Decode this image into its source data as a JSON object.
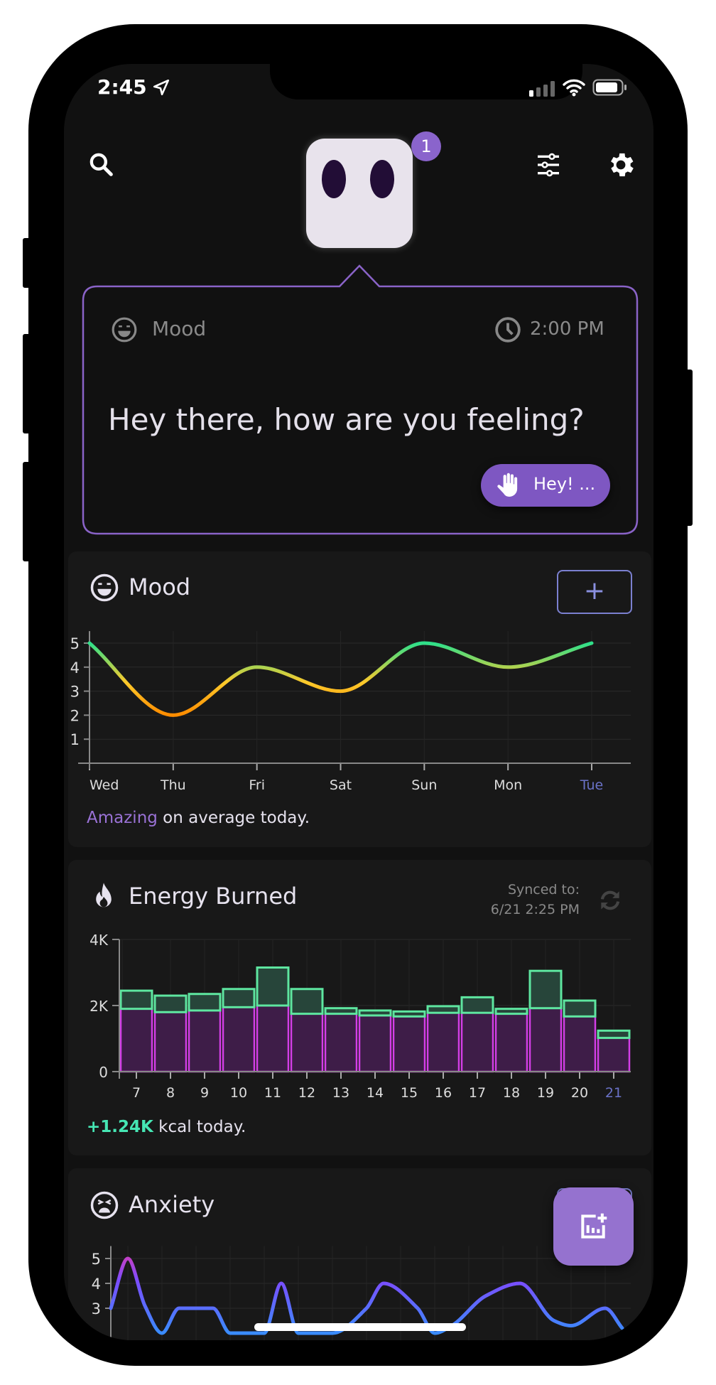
{
  "status_bar": {
    "time": "2:45",
    "icons": [
      "location-arrow-icon",
      "signal-icon",
      "wifi-icon",
      "battery-icon"
    ]
  },
  "header": {
    "badge_count": "1",
    "icons": [
      "search-icon",
      "avatar-face",
      "sliders-icon",
      "gear-icon"
    ]
  },
  "prompt": {
    "category": "Mood",
    "time": "2:00 PM",
    "question": "Hey there, how are you feeling?",
    "reply_label": "Hey! ..."
  },
  "mood_card": {
    "title": "Mood",
    "add_label": "+",
    "summary_highlight": "Amazing",
    "summary_rest": " on average today."
  },
  "energy_card": {
    "title": "Energy Burned",
    "synced_label": "Synced to:",
    "synced_time": "6/21 2:25 PM",
    "summary_highlight": "+1.24K",
    "summary_rest": " kcal today."
  },
  "anxiety_card": {
    "title": "Anxiety"
  },
  "colors": {
    "accent": "#7e57c2",
    "fab": "#9572cf",
    "mood_high": "#2ee08a",
    "mood_low": "#ff8c00",
    "energy_resting": "#d43ee8",
    "energy_active": "#5ee6a0",
    "today_label": "#6a72c8"
  },
  "chart_data": [
    {
      "type": "line",
      "title": "Mood",
      "categories": [
        "Wed",
        "Thu",
        "Fri",
        "Sat",
        "Sun",
        "Mon",
        "Tue"
      ],
      "values": [
        5,
        2,
        4,
        3,
        5,
        4,
        5
      ],
      "yticks": [
        "1",
        "2",
        "3",
        "4",
        "5"
      ],
      "ylim": [
        0,
        5
      ],
      "grid": true
    },
    {
      "type": "bar",
      "stacked": true,
      "title": "Energy Burned",
      "categories": [
        "7",
        "8",
        "9",
        "10",
        "11",
        "12",
        "13",
        "14",
        "15",
        "16",
        "17",
        "18",
        "19",
        "20",
        "21"
      ],
      "series": [
        {
          "values": [
            1.9,
            1.8,
            1.85,
            1.95,
            2.0,
            1.75,
            1.75,
            1.7,
            1.67,
            1.78,
            1.78,
            1.75,
            1.92,
            1.67,
            1.02
          ]
        },
        {
          "values": [
            0.55,
            0.5,
            0.5,
            0.55,
            1.15,
            0.75,
            0.17,
            0.15,
            0.15,
            0.2,
            0.47,
            0.15,
            1.13,
            0.48,
            0.22
          ]
        }
      ],
      "yticks": [
        "0",
        "2K",
        "4K"
      ],
      "ylim": [
        0,
        4
      ],
      "grid": true
    },
    {
      "type": "line",
      "title": "Anxiety",
      "points": [
        [
          0,
          3
        ],
        [
          1,
          5
        ],
        [
          2,
          3.1
        ],
        [
          3,
          2
        ],
        [
          4,
          3
        ],
        [
          6,
          3
        ],
        [
          7,
          2
        ],
        [
          9,
          2
        ],
        [
          10,
          4
        ],
        [
          11,
          2
        ],
        [
          13,
          2
        ],
        [
          15,
          3
        ],
        [
          16,
          4
        ],
        [
          18,
          3
        ],
        [
          19,
          2
        ],
        [
          20,
          2.3
        ],
        [
          22,
          3.5
        ],
        [
          24,
          4
        ],
        [
          26,
          2.5
        ],
        [
          27,
          2.3
        ],
        [
          29,
          3
        ],
        [
          30,
          2.2
        ]
      ],
      "yticks": [
        "3",
        "4",
        "5"
      ],
      "grid": true
    }
  ]
}
